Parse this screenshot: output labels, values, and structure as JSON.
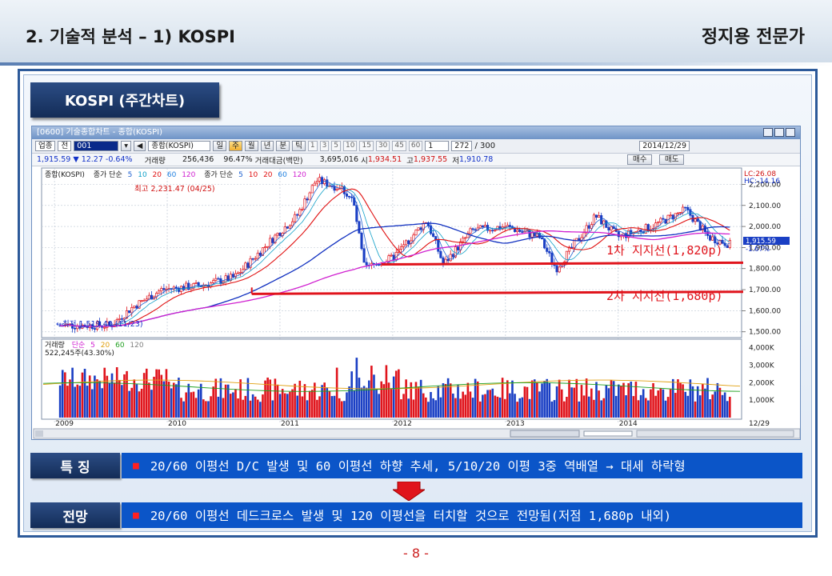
{
  "header": {
    "title": "2. 기술적 분석 – 1) KOSPI",
    "author": "정지용 전문가"
  },
  "section_tab": "KOSPI (주간차트)",
  "hts": {
    "window_title": "[0600] 기술종합차트 - 종합(KOSPI)",
    "toolbar": {
      "market": "업종",
      "period_sel": "전",
      "code": "001",
      "name": "종합(KOSPI)",
      "tabs": [
        "일",
        "주",
        "월",
        "년",
        "분",
        "틱"
      ],
      "active_tab": "주",
      "intervals": [
        "1",
        "3",
        "5",
        "10",
        "15",
        "30",
        "45",
        "60",
        "1"
      ],
      "count": "272",
      "count_max": "/ 300",
      "date": "2014/12/29"
    },
    "quote": {
      "price": "1,915.59",
      "change_arrow": "▼",
      "change": "12.27",
      "change_pct": "-0.64%",
      "volume_label": "거래량",
      "volume": "256,436",
      "volume_pct": "96.47%",
      "amount_label": "거래대금(백만)",
      "amount": "3,695,016",
      "open_label": "시",
      "open": "1,934.51",
      "high_label": "고",
      "high": "1,937.55",
      "low_label": "저",
      "low": "1,910.78",
      "buy": "매수",
      "sell": "매도"
    },
    "price_legend": {
      "name": "종합(KOSPI)",
      "ma_label": "종가 단순",
      "ma1": [
        "5",
        "10",
        "20",
        "60",
        "120"
      ],
      "ma_label2": "종가 단순",
      "ma2": [
        "5",
        "10",
        "20",
        "60",
        "120"
      ]
    },
    "volume_legend": {
      "name": "거래량",
      "ma_label": "단순",
      "ma": [
        "5",
        "20",
        "60",
        "120"
      ],
      "value": "522,245주(43.30%)"
    },
    "corner": {
      "lc": "LC:26.08",
      "hc": "HC:-14.16"
    },
    "annotations": {
      "high": "최고 2,231.47 (04/25)",
      "low": "←최저 1,519.40 (11/23)",
      "support1": "1차 지지선(1,820p)",
      "support2": "2차 지지선(1,680p)",
      "last_price": "1,915.59",
      "last_pct": "-1.67%"
    },
    "last_date": "12/29"
  },
  "chart_data": {
    "type": "candlestick+bar",
    "title": "",
    "x_axis": {
      "labels": [
        "2009",
        "2010",
        "2011",
        "2012",
        "2013",
        "2014"
      ]
    },
    "y_axis_price": {
      "range": [
        1500,
        2250
      ],
      "ticks": [
        "2,200.00",
        "2,100.00",
        "2,000.00",
        "1,900.00",
        "1,800.00",
        "1,700.00",
        "1,600.00",
        "1,500.00"
      ]
    },
    "y_axis_volume": {
      "range": [
        0,
        4200
      ],
      "ticks": [
        "4,000K",
        "3,000K",
        "2,000K",
        "1,000K"
      ]
    },
    "series": [
      {
        "name": "종합(KOSPI)",
        "x": [
          2009.5,
          2009.7,
          2009.95,
          2010.3,
          2010.6,
          2010.95,
          2011.15,
          2011.32,
          2011.55,
          2011.65,
          2011.75,
          2012.0,
          2012.3,
          2012.45,
          2012.7,
          2013.0,
          2013.3,
          2013.45,
          2013.8,
          2014.0,
          2014.3,
          2014.6,
          2014.8,
          2014.99
        ],
        "values": [
          1530,
          1620,
          1700,
          1720,
          1760,
          1950,
          2050,
          2220,
          2180,
          2120,
          1800,
          1850,
          2030,
          1820,
          1980,
          2000,
          1950,
          1800,
          2050,
          1950,
          2000,
          2080,
          1950,
          1915
        ]
      },
      {
        "name": "60",
        "values": [
          1560,
          1600,
          1640,
          1680,
          1720,
          1820,
          1900,
          1960,
          2000,
          2010,
          1990,
          1950,
          1920,
          1930,
          1940,
          1960,
          1970,
          1955,
          1950,
          1960,
          1965,
          1990,
          1980,
          1960
        ]
      },
      {
        "name": "120",
        "values": [
          1530,
          1560,
          1600,
          1640,
          1680,
          1740,
          1800,
          1880,
          1930,
          1960,
          1975,
          1965,
          1955,
          1950,
          1950,
          1955,
          1960,
          1955,
          1955,
          1958,
          1962,
          1975,
          1975,
          1965
        ]
      }
    ],
    "support_lines": [
      {
        "label": "1차 지지선(1,820p)",
        "y": 1820
      },
      {
        "label": "2차 지지선(1,680p)",
        "y": 1680
      }
    ]
  },
  "rows": [
    {
      "label": "특 징",
      "text": "20/60 이평선 D/C 발생 및 60 이평선 하향 추세, 5/10/20 이평 3중 역배열 → 대세 하락형"
    },
    {
      "label": "전망",
      "text": "20/60 이평선 데드크로스 발생 및 120 이평선을 터치할 것으로 전망됨(저점 1,680p 내외)"
    }
  ],
  "page_number": "- 8 -",
  "colors": {
    "navy": "#132c57",
    "row_blue": "#0b55c8",
    "up": "#e0141c",
    "down": "#1a3fc4",
    "support": "#e0141c"
  }
}
